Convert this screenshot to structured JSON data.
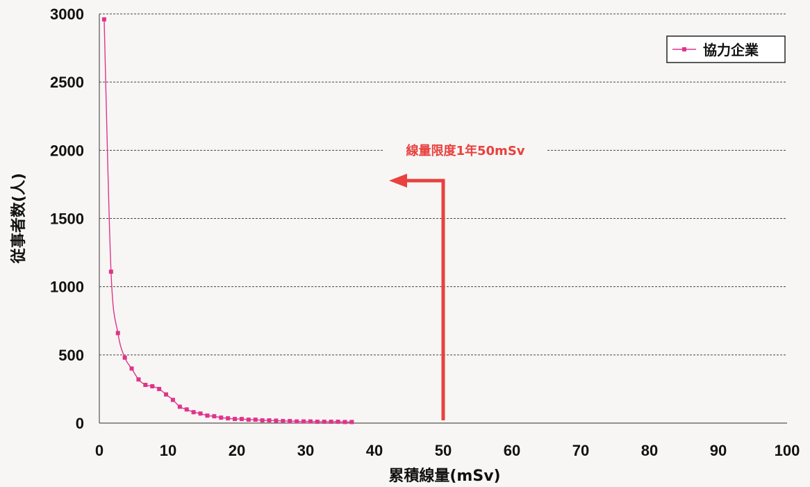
{
  "chart_data": {
    "type": "line",
    "xlabel": "累積線量(mSv)",
    "ylabel": "従事者数(人)",
    "xlim": [
      0,
      100
    ],
    "ylim": [
      0,
      3000
    ],
    "x_ticks": [
      "0",
      "10",
      "20",
      "30",
      "40",
      "50",
      "60",
      "70",
      "80",
      "90",
      "100"
    ],
    "y_ticks": [
      "0",
      "500",
      "1000",
      "1500",
      "2000",
      "2500",
      "3000"
    ],
    "grid": "horizontal dashed",
    "legend_position": "top-right",
    "series": [
      {
        "name": "協力企業",
        "color": "#e0338a",
        "marker": "square",
        "x": [
          0.7,
          1.7,
          2.7,
          3.7,
          4.7,
          5.7,
          6.7,
          7.7,
          8.7,
          9.7,
          10.7,
          11.7,
          12.7,
          13.7,
          14.7,
          15.7,
          16.7,
          17.7,
          18.7,
          19.7,
          20.7,
          21.7,
          22.7,
          23.7,
          24.7,
          25.7,
          26.7,
          27.7,
          28.7,
          29.7,
          30.7,
          31.7,
          32.7,
          33.7,
          34.7,
          35.7,
          36.7
        ],
        "y": [
          2960,
          1110,
          660,
          480,
          400,
          320,
          280,
          270,
          250,
          210,
          170,
          120,
          100,
          80,
          70,
          55,
          50,
          40,
          35,
          30,
          30,
          25,
          25,
          20,
          20,
          18,
          15,
          15,
          12,
          12,
          12,
          10,
          10,
          10,
          10,
          8,
          8
        ]
      }
    ],
    "annotations": [
      {
        "text": "線量限度1年50mSv",
        "x": 50,
        "color": "#e8413e"
      }
    ]
  }
}
